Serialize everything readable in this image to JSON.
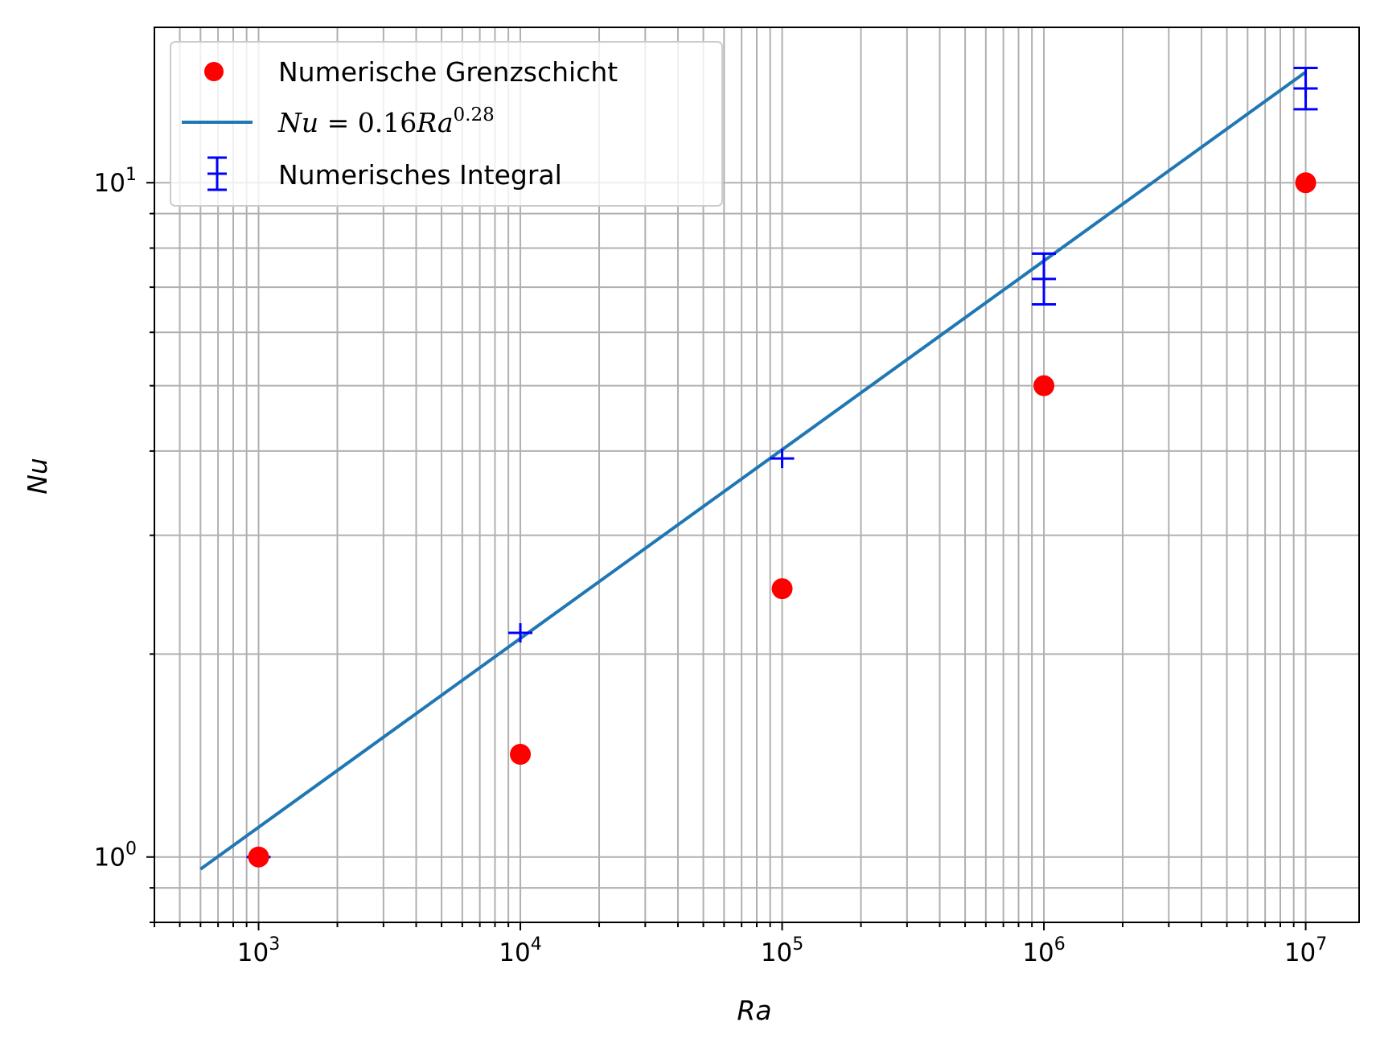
{
  "chart_data": {
    "type": "scatter",
    "title": "",
    "xlabel": "Ra",
    "ylabel": "Nu",
    "x_scale": "log",
    "y_scale": "log",
    "xlim": [
      400,
      16000000
    ],
    "ylim": [
      0.8,
      17.0
    ],
    "grid": true,
    "grid_which": "both",
    "legend_position": "top-left",
    "x_ticks": [
      {
        "value": 1000,
        "base": "10",
        "exp": "3"
      },
      {
        "value": 10000,
        "base": "10",
        "exp": "4"
      },
      {
        "value": 100000,
        "base": "10",
        "exp": "5"
      },
      {
        "value": 1000000,
        "base": "10",
        "exp": "6"
      },
      {
        "value": 10000000,
        "base": "10",
        "exp": "7"
      }
    ],
    "y_ticks": [
      {
        "value": 1,
        "base": "10",
        "exp": "0"
      },
      {
        "value": 10,
        "base": "10",
        "exp": "1"
      }
    ],
    "series": [
      {
        "name": "Numerische Grenzschicht",
        "kind": "marker-circle",
        "color": "#ff0000",
        "x": [
          1000,
          10000,
          100000,
          1000000,
          10000000
        ],
        "y": [
          1.0,
          1.42,
          2.5,
          5.0,
          10.0
        ]
      },
      {
        "name_parts": {
          "lhs": "Nu",
          "eq": " = 0.16",
          "var": "Ra",
          "exp": "0.28"
        },
        "kind": "line",
        "color": "#1f77b4",
        "coefficient": 0.16,
        "exponent": 0.28,
        "x_range": [
          600,
          10000000
        ]
      },
      {
        "name": "Numerisches Integral",
        "kind": "errorbar-plus",
        "color": "#0000ff",
        "x": [
          1000,
          10000,
          100000,
          1000000,
          10000000
        ],
        "y": [
          1.0,
          2.15,
          3.9,
          7.2,
          13.8
        ],
        "y_err_low": [
          0.0,
          0.0,
          0.0,
          0.6,
          0.95
        ],
        "y_err_high": [
          0.0,
          0.0,
          0.0,
          0.65,
          1.0
        ]
      }
    ]
  }
}
